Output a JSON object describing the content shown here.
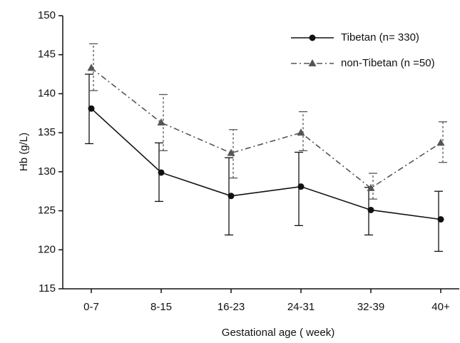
{
  "chart_data": {
    "type": "line",
    "x_label": "Gestational age ( week)",
    "y_label": "Hb (g/L)",
    "categories": [
      "0-7",
      "8-15",
      "16-23",
      "24-31",
      "32-39",
      "40+"
    ],
    "ylim": [
      115,
      150
    ],
    "yticks": [
      115,
      120,
      125,
      130,
      135,
      140,
      145,
      150
    ],
    "legend": "top-right",
    "series": [
      {
        "name": "Tibetan  (n=  330)",
        "color": "#111111",
        "marker": "circle",
        "dash": "solid",
        "values": [
          138.1,
          129.9,
          126.9,
          128.1,
          125.1,
          123.9
        ],
        "upper": [
          142.5,
          133.7,
          131.8,
          132.5,
          128.0,
          127.5
        ],
        "lower": [
          133.6,
          126.2,
          121.9,
          123.1,
          121.9,
          119.8
        ]
      },
      {
        "name": "non-Tibetan (n =50)",
        "color": "#555555",
        "marker": "triangle",
        "dash": "dashdot",
        "values": [
          143.3,
          136.3,
          132.4,
          135.0,
          127.9,
          133.7
        ],
        "upper": [
          146.4,
          139.9,
          135.4,
          137.7,
          129.8,
          136.4
        ],
        "lower": [
          140.4,
          132.7,
          129.2,
          132.7,
          126.5,
          131.2
        ]
      }
    ]
  }
}
